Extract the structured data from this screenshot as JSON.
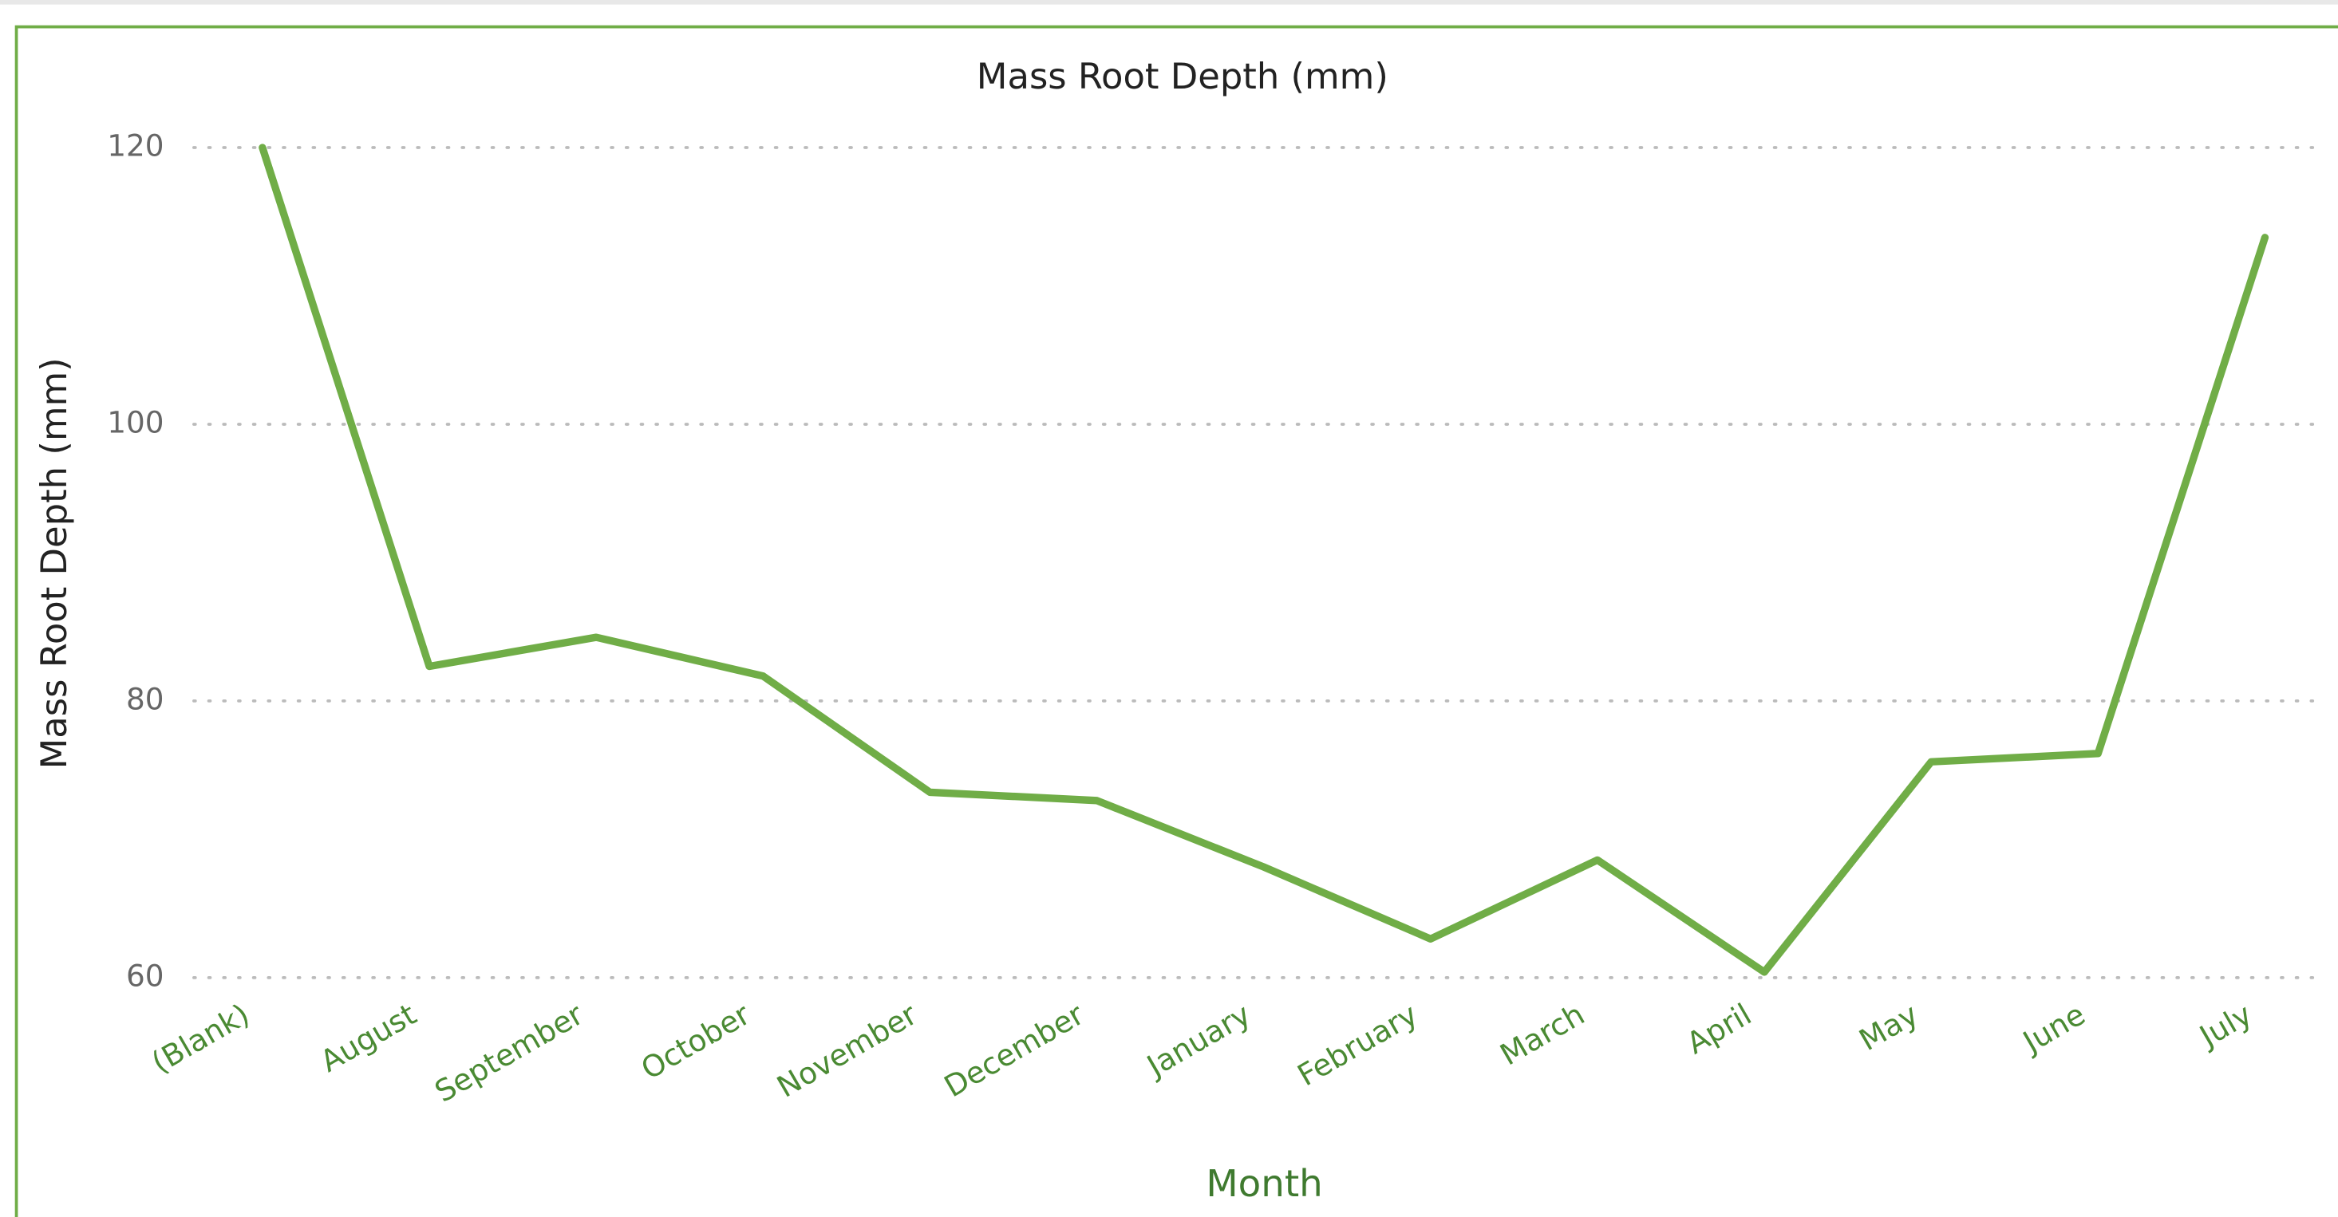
{
  "chart_data": {
    "type": "line",
    "title": "Mass Root Depth (mm)",
    "x_label": "Month",
    "y_label": "Mass Root Depth (mm)",
    "categories": [
      "(Blank)",
      "August",
      "September",
      "October",
      "November",
      "December",
      "January",
      "February",
      "March",
      "April",
      "May",
      "June",
      "July"
    ],
    "series": [
      {
        "name": "Mass Root Depth (mm)",
        "color": "#70ad47",
        "values": [
          120,
          82.5,
          84.6,
          81.8,
          73.4,
          72.8,
          68,
          62.8,
          68.5,
          60.4,
          75.6,
          76.2,
          113.5
        ]
      }
    ],
    "ylim": [
      60,
      120
    ],
    "yticks": [
      60,
      80,
      100,
      120
    ],
    "grid": true
  }
}
